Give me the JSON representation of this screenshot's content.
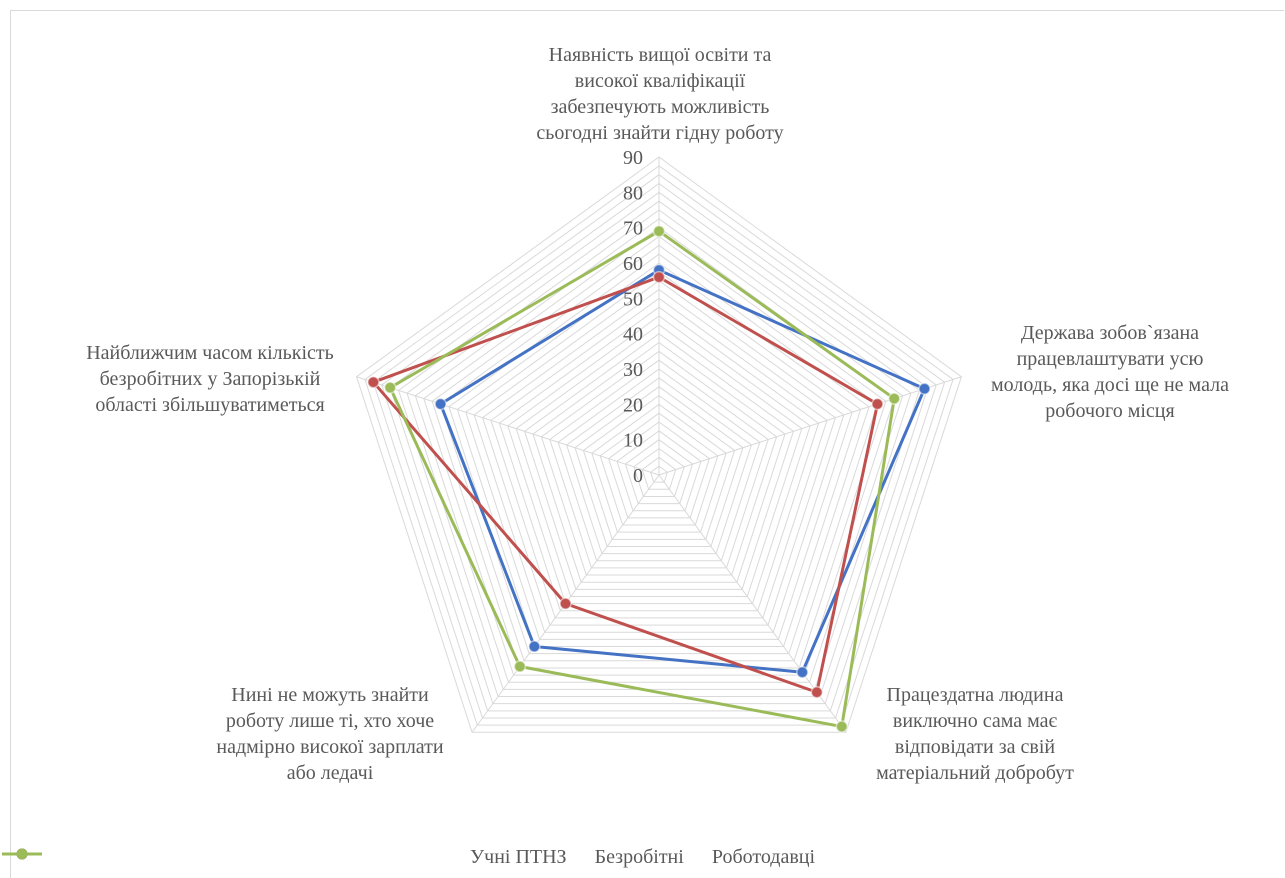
{
  "chart_data": {
    "type": "radar",
    "categories": [
      "Наявність вищої освіти та високої кваліфікації забезпечують можливість сьогодні знайти гідну роботу",
      "Держава зобов`язана працевлаштувати усю молодь, яка досі ще не мала робочого місця",
      "Працездатна людина виключно сама має відповідати за свій матеріальний добробут",
      "Нині не можуть знайти роботу лише ті, хто хоче надмірно високої зарплати або ледачі",
      "Найближчим часом кількість безробітних у Запорізькій області збільшуватиметься"
    ],
    "category_lines": [
      [
        "Наявність вищої освіти та",
        "високої кваліфікації",
        "забезпечують можливість",
        "сьогодні знайти гідну роботу"
      ],
      [
        "Держава зобов`язана",
        "працевлаштувати усю",
        "молодь, яка досі ще не мала",
        "робочого місця"
      ],
      [
        "Працездатна людина",
        "виключно сама має",
        "відповідати за свій",
        "матеріальний добробут"
      ],
      [
        "Нині не можуть знайти",
        "роботу лише ті, хто хоче",
        "надмірно високої зарплати",
        "або ледачі"
      ],
      [
        "Найближчим часом кількість",
        "безробітних у Запорізькій",
        "області збільшуватиметься"
      ]
    ],
    "series": [
      {
        "name": "Учні ПТНЗ",
        "color": "#4472c4",
        "values": [
          58,
          79,
          69,
          60,
          65
        ]
      },
      {
        "name": "Безробітні",
        "color": "#c0504d",
        "values": [
          56,
          65,
          76,
          45,
          85
        ]
      },
      {
        "name": "Роботодавці",
        "color": "#9bbb59",
        "values": [
          69,
          70,
          88,
          67,
          80
        ]
      }
    ],
    "rlim": [
      0,
      90
    ],
    "ticks": [
      0,
      10,
      20,
      30,
      40,
      50,
      60,
      70,
      80,
      90
    ],
    "grid_step": 2.5,
    "legend_position": "bottom"
  }
}
